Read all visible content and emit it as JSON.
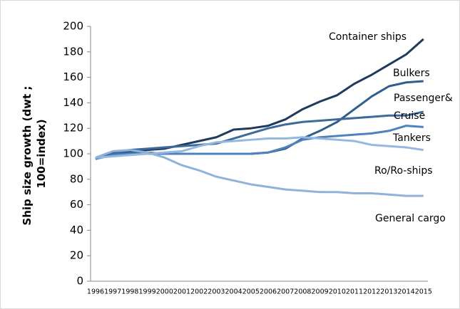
{
  "chart_data": {
    "type": "line",
    "y_label": [
      "Ship size growth (dwt ;",
      "100=index)"
    ],
    "categories": [
      "1996",
      "1997",
      "1998",
      "1999",
      "2000",
      "2001",
      "2002",
      "2003",
      "2004",
      "2005",
      "2006",
      "2007",
      "2008",
      "2009",
      "2010",
      "2011",
      "2012",
      "2013",
      "2014",
      "2015"
    ],
    "series": [
      {
        "name": "Container ships",
        "color": "#1f3a5f",
        "values": [
          96,
          101,
          102,
          103,
          104,
          107,
          110,
          113,
          119,
          120,
          122,
          127,
          135,
          141,
          146,
          155,
          162,
          170,
          178,
          190
        ]
      },
      {
        "name": "Bulkers",
        "color": "#2f5f8f",
        "values": [
          96,
          100,
          101,
          101,
          100,
          100,
          100,
          100,
          100,
          100,
          101,
          104,
          112,
          118,
          125,
          135,
          145,
          153,
          156,
          157
        ]
      },
      {
        "name": "Passenger& Cruise",
        "color": "#3c6a99",
        "values": [
          96,
          100,
          103,
          104,
          105,
          106,
          107,
          108,
          112,
          116,
          120,
          123,
          125,
          126,
          127,
          128,
          129,
          130,
          130,
          133
        ]
      },
      {
        "name": "Tankers",
        "color": "#4f81bd",
        "values": [
          96,
          99,
          100,
          100,
          100,
          100,
          100,
          100,
          100,
          100,
          101,
          105,
          111,
          113,
          114,
          115,
          116,
          118,
          122,
          121
        ]
      },
      {
        "name": "Ro/Ro-ships",
        "color": "#95b8e0",
        "values": [
          97,
          98,
          99,
          100,
          101,
          102,
          106,
          109,
          110,
          111,
          112,
          112,
          113,
          112,
          111,
          110,
          107,
          106,
          105,
          103
        ]
      },
      {
        "name": "General cargo",
        "color": "#8fb2d9",
        "values": [
          97,
          102,
          103,
          101,
          97,
          91,
          87,
          82,
          79,
          76,
          74,
          72,
          71,
          70,
          70,
          69,
          69,
          68,
          67,
          67
        ]
      }
    ],
    "ylim": [
      0,
      200
    ],
    "yticks": [
      0,
      20,
      40,
      60,
      80,
      100,
      120,
      140,
      160,
      180,
      200
    ],
    "grid": false
  }
}
